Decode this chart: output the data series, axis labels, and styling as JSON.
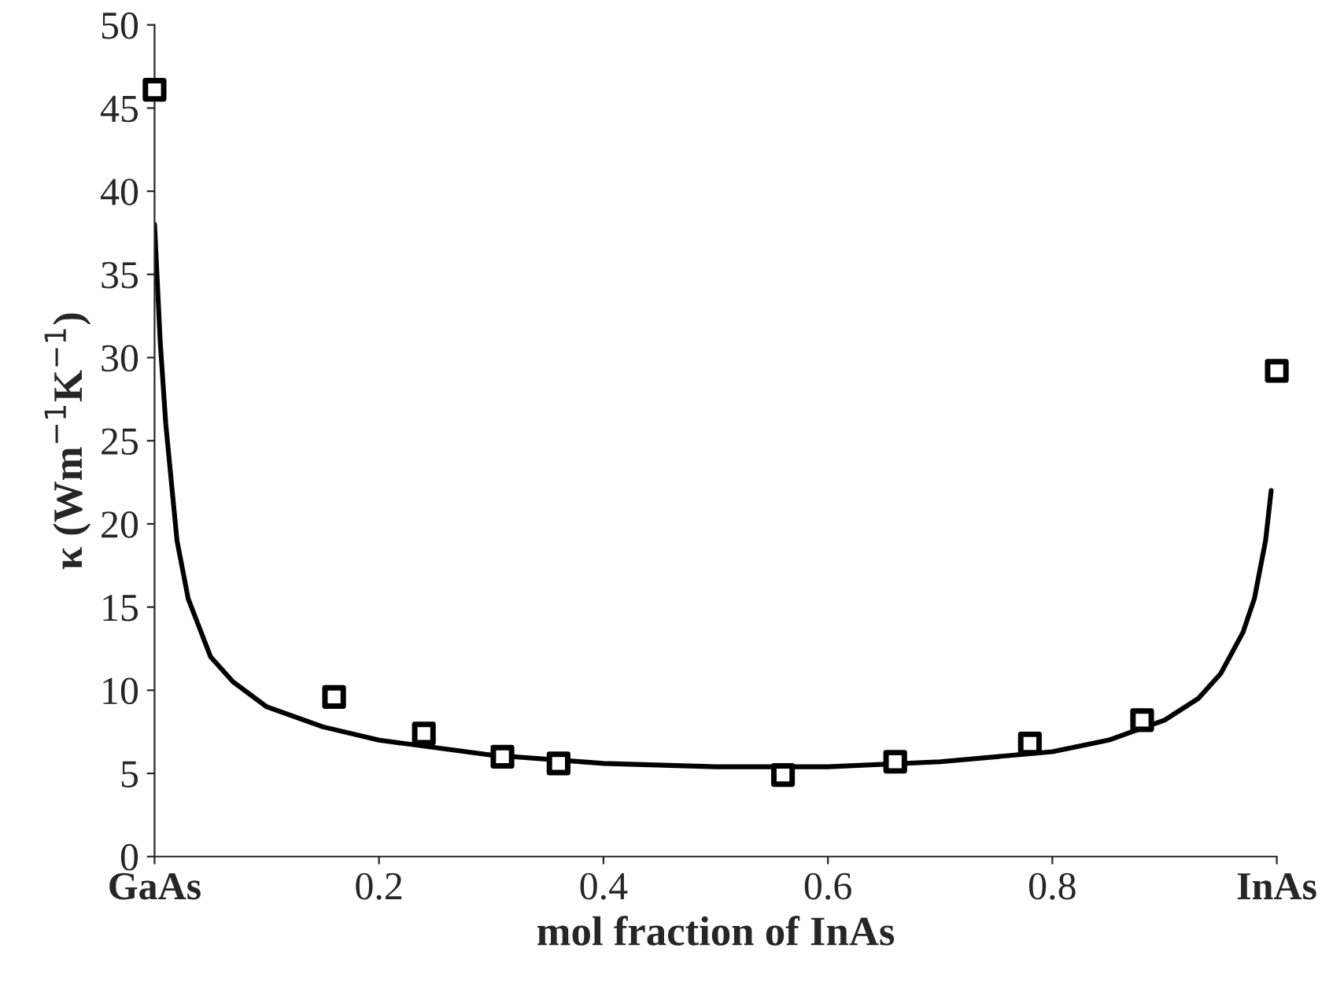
{
  "chart_data": {
    "type": "scatter",
    "xlabel": "mol fraction of InAs",
    "ylabel": "κ (Wm$^{−1}$K$^{−1}$)",
    "xlim": [
      0,
      1
    ],
    "ylim": [
      0,
      50
    ],
    "xticks": [
      {
        "value": 0,
        "label": "GaAs"
      },
      0.2,
      0.4,
      0.6,
      0.8,
      {
        "value": 1,
        "label": "InAs"
      }
    ],
    "yticks": [
      0,
      5,
      10,
      15,
      20,
      25,
      30,
      35,
      40,
      45,
      50
    ],
    "grid": false,
    "legend": false,
    "series": [
      {
        "marker": "square",
        "color": "#000000",
        "x": [
          0,
          0.16,
          0.24,
          0.31,
          0.36,
          0.56,
          0.66,
          0.78,
          0.88,
          1.0
        ],
        "values": [
          46.1,
          9.6,
          7.4,
          6.0,
          5.6,
          4.9,
          5.7,
          6.8,
          8.2,
          29.2
        ]
      },
      {
        "type": "line",
        "marker": "none",
        "line_style": "solid",
        "color": "#000000",
        "x": [
          0,
          0.005,
          0.01,
          0.02,
          0.03,
          0.05,
          0.07,
          0.1,
          0.15,
          0.2,
          0.3,
          0.4,
          0.5,
          0.6,
          0.7,
          0.8,
          0.85,
          0.9,
          0.93,
          0.95,
          0.97,
          0.98,
          0.99,
          0.995
        ],
        "values": [
          38,
          31,
          26,
          19,
          15.5,
          12,
          10.5,
          9,
          7.8,
          7,
          6.1,
          5.6,
          5.4,
          5.4,
          5.7,
          6.3,
          7,
          8.2,
          9.5,
          11,
          13.5,
          15.5,
          19,
          22
        ]
      }
    ]
  }
}
